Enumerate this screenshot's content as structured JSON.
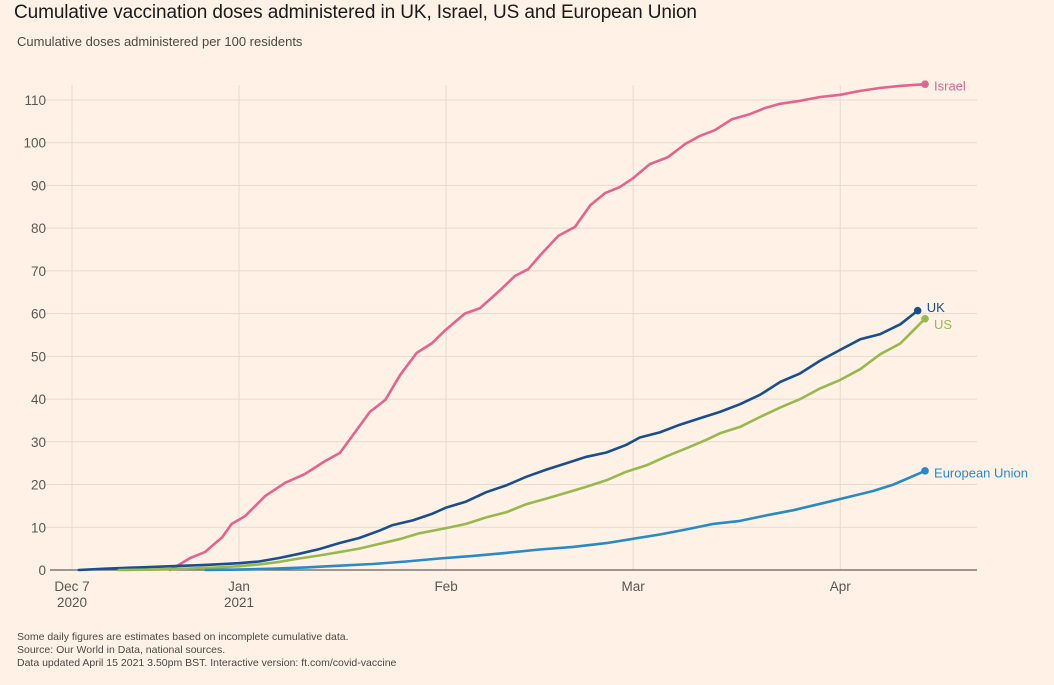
{
  "chart_data": {
    "type": "line",
    "title": "Cumulative vaccination doses administered in UK, Israel, US and European Union",
    "subtitle": "Cumulative doses administered per 100 residents",
    "xlabel": "",
    "ylabel": "Cumulative doses administered per 100 residents",
    "x_unit": "days since Dec 7 2020",
    "xlim": [
      0,
      135
    ],
    "ylim": [
      0,
      115
    ],
    "yticks": [
      0,
      10,
      20,
      30,
      40,
      50,
      60,
      70,
      80,
      90,
      100,
      110
    ],
    "ytick_labels": [
      "0",
      "10",
      "20",
      "30",
      "40",
      "50",
      "60",
      "70",
      "80",
      "90",
      "100",
      "110"
    ],
    "xticks": [
      {
        "day": 0,
        "label": "Dec 7",
        "sublabel": "2020"
      },
      {
        "day": 25,
        "label": "Jan",
        "sublabel": "2021"
      },
      {
        "day": 56,
        "label": "Feb",
        "sublabel": ""
      },
      {
        "day": 84,
        "label": "Mar",
        "sublabel": ""
      },
      {
        "day": 115,
        "label": "Apr",
        "sublabel": ""
      }
    ],
    "grid": true,
    "legend": "direct-labels-right",
    "series": [
      {
        "name": "Israel",
        "color": "#e2648f",
        "points": [
          [
            14.7,
            0
          ],
          [
            17.7,
            2.8
          ],
          [
            19.9,
            4.2
          ],
          [
            22.5,
            7.7
          ],
          [
            23.9,
            10.8
          ],
          [
            25.9,
            12.6
          ],
          [
            28.9,
            17.3
          ],
          [
            31.9,
            20.4
          ],
          [
            34.9,
            22.5
          ],
          [
            37.9,
            25.5
          ],
          [
            40.1,
            27.4
          ],
          [
            42.4,
            32.3
          ],
          [
            44.6,
            37
          ],
          [
            46.9,
            39.8
          ],
          [
            49.1,
            45.6
          ],
          [
            51.6,
            50.8
          ],
          [
            53.9,
            53.1
          ],
          [
            55.8,
            56
          ],
          [
            58.8,
            60
          ],
          [
            61.1,
            61.3
          ],
          [
            64.1,
            65.5
          ],
          [
            66.3,
            68.8
          ],
          [
            68.3,
            70.4
          ],
          [
            70.1,
            73.7
          ],
          [
            72.8,
            78.2
          ],
          [
            75.3,
            80.3
          ],
          [
            77.6,
            85.4
          ],
          [
            79.8,
            88.2
          ],
          [
            82.0,
            89.6
          ],
          [
            84.0,
            91.7
          ],
          [
            86.5,
            95
          ],
          [
            89.2,
            96.6
          ],
          [
            91.8,
            99.7
          ],
          [
            94.0,
            101.6
          ],
          [
            96.3,
            103
          ],
          [
            98.8,
            105.5
          ],
          [
            101.5,
            106.7
          ],
          [
            103.7,
            108.1
          ],
          [
            106.0,
            109.1
          ],
          [
            109.0,
            109.8
          ],
          [
            112.0,
            110.7
          ],
          [
            115.0,
            111.2
          ],
          [
            117.9,
            112.1
          ],
          [
            120.9,
            112.8
          ],
          [
            123.9,
            113.3
          ],
          [
            127.7,
            113.7
          ]
        ]
      },
      {
        "name": "UK",
        "color": "#1a4f8f",
        "points": [
          [
            1,
            0
          ],
          [
            5,
            0.3
          ],
          [
            10,
            0.6
          ],
          [
            15,
            0.9
          ],
          [
            20,
            1.2
          ],
          [
            25,
            1.6
          ],
          [
            28,
            2.0
          ],
          [
            31,
            2.8
          ],
          [
            34,
            3.8
          ],
          [
            37,
            4.9
          ],
          [
            40,
            6.3
          ],
          [
            43,
            7.5
          ],
          [
            46,
            9.2
          ],
          [
            48,
            10.5
          ],
          [
            51,
            11.6
          ],
          [
            54,
            13.2
          ],
          [
            56,
            14.6
          ],
          [
            59,
            16.0
          ],
          [
            62,
            18.2
          ],
          [
            65,
            19.8
          ],
          [
            68,
            21.8
          ],
          [
            71,
            23.5
          ],
          [
            74,
            25.0
          ],
          [
            77,
            26.5
          ],
          [
            80,
            27.5
          ],
          [
            83,
            29.3
          ],
          [
            85,
            31.0
          ],
          [
            88,
            32.2
          ],
          [
            91,
            34.0
          ],
          [
            94,
            35.5
          ],
          [
            97,
            37.0
          ],
          [
            100,
            38.8
          ],
          [
            103,
            41.0
          ],
          [
            106,
            44.0
          ],
          [
            109,
            46.0
          ],
          [
            112,
            49.0
          ],
          [
            115,
            51.5
          ],
          [
            118,
            54.0
          ],
          [
            121,
            55.2
          ],
          [
            124,
            57.5
          ],
          [
            126.6,
            60.7
          ]
        ]
      },
      {
        "name": "US",
        "color": "#96b94e",
        "points": [
          [
            7,
            0
          ],
          [
            12,
            0.1
          ],
          [
            17,
            0.3
          ],
          [
            22,
            0.6
          ],
          [
            25,
            0.9
          ],
          [
            28,
            1.3
          ],
          [
            31,
            1.9
          ],
          [
            34,
            2.7
          ],
          [
            37,
            3.4
          ],
          [
            40,
            4.2
          ],
          [
            43,
            5.0
          ],
          [
            46,
            6.1
          ],
          [
            49,
            7.2
          ],
          [
            52,
            8.6
          ],
          [
            56,
            9.8
          ],
          [
            59,
            10.8
          ],
          [
            62,
            12.3
          ],
          [
            65,
            13.5
          ],
          [
            68,
            15.4
          ],
          [
            71,
            16.7
          ],
          [
            74,
            18.1
          ],
          [
            77,
            19.5
          ],
          [
            80,
            21.0
          ],
          [
            83,
            23.0
          ],
          [
            86,
            24.5
          ],
          [
            89,
            26.6
          ],
          [
            92,
            28.5
          ],
          [
            95,
            30.5
          ],
          [
            97,
            32.0
          ],
          [
            100,
            33.5
          ],
          [
            103,
            35.8
          ],
          [
            106,
            38.0
          ],
          [
            109,
            40.0
          ],
          [
            112,
            42.5
          ],
          [
            115,
            44.5
          ],
          [
            118,
            47.0
          ],
          [
            121,
            50.5
          ],
          [
            124,
            53.0
          ],
          [
            127.7,
            58.8
          ]
        ]
      },
      {
        "name": "European Union",
        "color": "#2a8ac6",
        "points": [
          [
            20,
            0
          ],
          [
            25,
            0.1
          ],
          [
            30,
            0.3
          ],
          [
            35,
            0.6
          ],
          [
            40,
            1.0
          ],
          [
            45,
            1.4
          ],
          [
            50,
            2.0
          ],
          [
            55,
            2.7
          ],
          [
            60,
            3.3
          ],
          [
            65,
            4.0
          ],
          [
            70,
            4.8
          ],
          [
            75,
            5.4
          ],
          [
            80,
            6.3
          ],
          [
            84,
            7.3
          ],
          [
            88,
            8.3
          ],
          [
            92,
            9.5
          ],
          [
            96,
            10.8
          ],
          [
            100,
            11.5
          ],
          [
            104,
            12.8
          ],
          [
            108,
            14.0
          ],
          [
            112,
            15.5
          ],
          [
            116,
            17.0
          ],
          [
            120,
            18.5
          ],
          [
            123,
            20.0
          ],
          [
            127.7,
            23.2
          ]
        ]
      }
    ]
  },
  "footer": {
    "note": "Some daily figures are estimates based on incomplete cumulative data.",
    "source": "Source: Our World in Data, national sources.",
    "updated": "Data updated April 15 2021 3.50pm BST. Interactive version: ft.com/covid-vaccine"
  }
}
